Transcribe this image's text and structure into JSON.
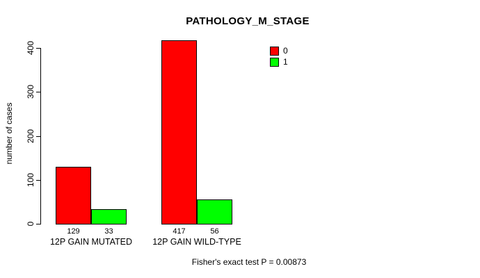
{
  "chart_data": {
    "type": "bar",
    "title": "PATHOLOGY_M_STAGE",
    "categories": [
      "12P GAIN MUTATED",
      "12P GAIN WILD-TYPE"
    ],
    "series": [
      {
        "name": "0",
        "color": "#FF0000",
        "values": [
          129,
          417
        ]
      },
      {
        "name": "1",
        "color": "#00FF00",
        "values": [
          33,
          56
        ]
      }
    ],
    "bar_value_labels": [
      [
        "129",
        "33"
      ],
      [
        "417",
        "56"
      ]
    ],
    "xlabel": "",
    "ylabel": "number of cases",
    "ylim": [
      0,
      440
    ],
    "yticks": [
      0,
      100,
      200,
      300,
      400
    ],
    "grid": false,
    "legend_position": "top-right",
    "legend_items": [
      {
        "label": "0",
        "color": "#FF0000"
      },
      {
        "label": "1",
        "color": "#00FF00"
      }
    ],
    "annotation": "Fisher's exact test P = 0.00873",
    "bar_border_color": "#000000"
  }
}
